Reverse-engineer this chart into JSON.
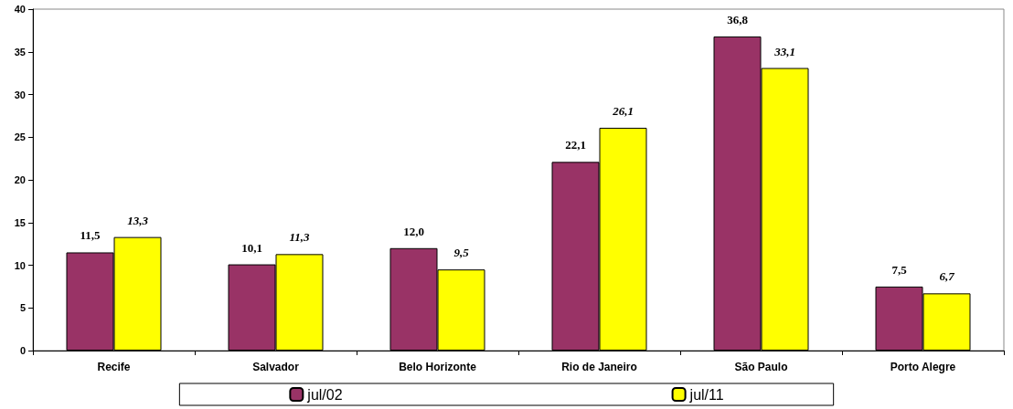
{
  "chart_data": {
    "type": "bar",
    "categories": [
      "Recife",
      "Salvador",
      "Belo Horizonte",
      "Rio de Janeiro",
      "São Paulo",
      "Porto Alegre"
    ],
    "series": [
      {
        "name": "jul/02",
        "color": "#993366",
        "values": [
          11.5,
          10.1,
          12.0,
          22.1,
          36.8,
          7.5
        ],
        "value_labels": [
          "11,5",
          "10,1",
          "12,0",
          "22,1",
          "36,8",
          "7,5"
        ]
      },
      {
        "name": "jul/11",
        "color": "#ffff00",
        "values": [
          13.3,
          11.3,
          9.5,
          26.1,
          33.1,
          6.7
        ],
        "value_labels": [
          "13,3",
          "11,3",
          "9,5",
          "26,1",
          "33,1",
          "6,7"
        ]
      }
    ],
    "ylim": [
      0,
      40
    ],
    "yticks": [
      0,
      5,
      10,
      15,
      20,
      25,
      30,
      35,
      40
    ],
    "grid": false,
    "legend": "bottom"
  }
}
